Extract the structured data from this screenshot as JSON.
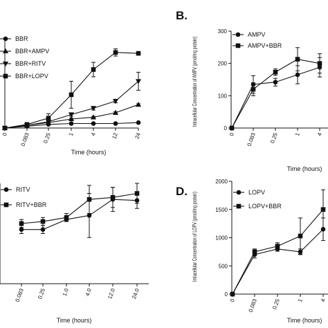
{
  "chart_data": [
    {
      "panel": "A",
      "type": "line",
      "title": "",
      "panel_label": "",
      "xlabel": "Time (hours)",
      "ylabel": "",
      "x": [
        "0",
        "0.083",
        "0.25",
        "1",
        "4",
        "12",
        "24"
      ],
      "ylim": [
        0,
        1
      ],
      "yticks": [],
      "legend": "top-left",
      "series": [
        {
          "name": "BBR",
          "marker": "circle",
          "values": [
            0.0,
            0.02,
            0.04,
            0.05,
            0.05,
            0.05,
            0.06
          ],
          "errors": [
            0.0,
            0.0,
            0.005,
            0.005,
            0.005,
            0.005,
            0.005
          ]
        },
        {
          "name": "BBR+AMPV",
          "marker": "triangle-up",
          "values": [
            0.0,
            0.03,
            0.06,
            0.1,
            0.12,
            0.17,
            0.26
          ],
          "errors": [
            0.0,
            0.0,
            0.01,
            0.01,
            0.01,
            0.01,
            0.01
          ]
        },
        {
          "name": "BBR+RITV",
          "marker": "triangle-down",
          "values": [
            0.0,
            0.03,
            0.07,
            0.15,
            0.22,
            0.3,
            0.52
          ],
          "errors": [
            0.0,
            0.0,
            0.02,
            0.02,
            0.02,
            0.02,
            0.1
          ]
        },
        {
          "name": "BBR+LOPV",
          "marker": "square",
          "values": [
            0.0,
            0.04,
            0.11,
            0.37,
            0.65,
            0.84,
            0.83
          ],
          "errors": [
            0.0,
            0.0,
            0.05,
            0.15,
            0.08,
            0.04,
            0.0
          ]
        }
      ]
    },
    {
      "panel": "B",
      "type": "line",
      "title": "",
      "panel_label": "B.",
      "xlabel": "Time (hours)",
      "ylabel": "Intracellular Concentration of AMPV (pmol/mg protein)",
      "x": [
        "0",
        "0.083",
        "0.25",
        "1",
        "4"
      ],
      "ylim": [
        0,
        300
      ],
      "yticks": [
        "0",
        "100",
        "200",
        "300"
      ],
      "legend": "top-left",
      "series": [
        {
          "name": "AMPV",
          "marker": "circle",
          "values": [
            0,
            135,
            142,
            165,
            188
          ],
          "errors": [
            0,
            27,
            12,
            28,
            30
          ]
        },
        {
          "name": "AMPV+BBR",
          "marker": "square",
          "values": [
            0,
            120,
            173,
            213,
            200
          ],
          "errors": [
            0,
            20,
            10,
            36,
            30
          ]
        }
      ]
    },
    {
      "panel": "C",
      "type": "line",
      "title": "",
      "panel_label": "",
      "xlabel": "Time (hours)",
      "ylabel": "",
      "x": [
        "0.083",
        "0.25",
        "1.0",
        "4.0",
        "12.0",
        "24.0"
      ],
      "ylim": [
        0,
        1
      ],
      "yticks": [],
      "legend": "top-left",
      "series": [
        {
          "name": "RITV",
          "marker": "circle",
          "values": [
            0.54,
            0.54,
            0.64,
            0.68,
            0.84,
            0.83
          ],
          "errors": [
            0.04,
            0.04,
            0.02,
            0.22,
            0.12,
            0.08
          ]
        },
        {
          "name": "RITV+BBR",
          "marker": "square",
          "values": [
            0.6,
            0.62,
            0.66,
            0.84,
            0.86,
            0.9
          ],
          "errors": [
            0.04,
            0.04,
            0.04,
            0.14,
            0.1,
            0.1
          ]
        }
      ]
    },
    {
      "panel": "D",
      "type": "line",
      "title": "",
      "panel_label": "D.",
      "xlabel": "Time (hours)",
      "ylabel": "Intracellular Concentration of LOPV (pmol/mg protein)",
      "x": [
        "0",
        "0.083",
        "0.25",
        "1",
        "4"
      ],
      "ylim": [
        0,
        2000
      ],
      "yticks": [
        "0",
        "500",
        "1000",
        "1500",
        "2000"
      ],
      "legend": "top-left",
      "series": [
        {
          "name": "LOPV",
          "marker": "circle",
          "values": [
            0,
            700,
            800,
            750,
            1150
          ],
          "errors": [
            0,
            60,
            40,
            50,
            200
          ]
        },
        {
          "name": "LOPV+BBR",
          "marker": "square",
          "values": [
            0,
            750,
            850,
            1030,
            1500
          ],
          "errors": [
            0,
            50,
            60,
            320,
            350
          ]
        }
      ]
    }
  ]
}
